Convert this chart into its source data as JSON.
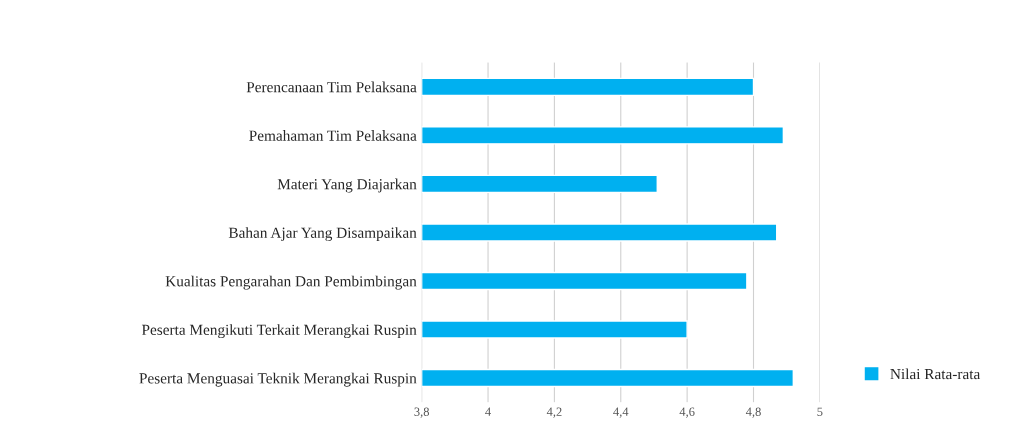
{
  "chart_data": {
    "type": "bar",
    "orientation": "horizontal",
    "categories": [
      "Perencanaan Tim Pelaksana",
      "Pemahaman Tim Pelaksana",
      "Materi Yang Diajarkan",
      "Bahan Ajar Yang Disampaikan",
      "Kualitas Pengarahan Dan Pembimbingan",
      "Peserta Mengikuti Terkait Merangkai Ruspin",
      "Peserta Menguasai Teknik Merangkai Ruspin"
    ],
    "series": [
      {
        "name": "Nilai Rata-rata",
        "color": "#00b0f0",
        "values": [
          4.8,
          4.89,
          4.51,
          4.87,
          4.78,
          4.6,
          4.92
        ]
      }
    ],
    "xlim": [
      3.8,
      5
    ],
    "xticks": [
      {
        "value": 3.8,
        "label": "3,8"
      },
      4,
      {
        "value": 4.2,
        "label": "4,2"
      },
      {
        "value": 4.4,
        "label": "4,4"
      },
      {
        "value": 4.6,
        "label": "4,6"
      },
      {
        "value": 4.8,
        "label": "4,8"
      },
      5
    ],
    "grid": "x",
    "legend": "right"
  }
}
